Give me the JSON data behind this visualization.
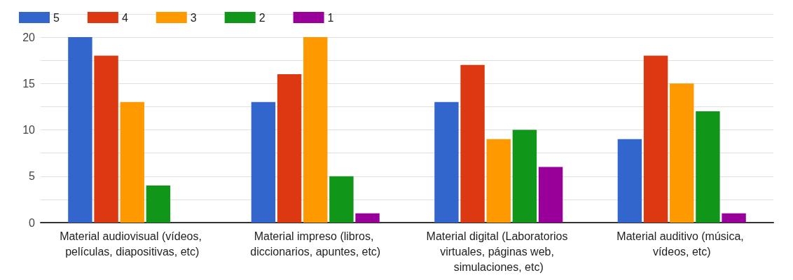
{
  "chart_data": {
    "type": "bar",
    "categories": [
      "Material audiovisual (vídeos, películas, diapositivas, etc)",
      "Material impreso (libros, diccionarios, apuntes, etc)",
      "Material digital (Laboratorios virtuales, páginas web, simulaciones, etc)",
      "Material auditivo (música, vídeos, etc)"
    ],
    "series": [
      {
        "name": "5",
        "color": "#3366cc",
        "values": [
          20,
          13,
          13,
          9
        ]
      },
      {
        "name": "4",
        "color": "#dc3912",
        "values": [
          18,
          16,
          17,
          18
        ]
      },
      {
        "name": "3",
        "color": "#ff9900",
        "values": [
          13,
          20,
          9,
          15
        ]
      },
      {
        "name": "2",
        "color": "#109618",
        "values": [
          4,
          5,
          10,
          12
        ]
      },
      {
        "name": "1",
        "color": "#990099",
        "values": [
          0,
          1,
          6,
          1
        ]
      }
    ],
    "ylim": [
      0,
      22.5
    ],
    "yticks": [
      0,
      {
        "value": 2.5,
        "label": null
      },
      5,
      {
        "value": 7.5,
        "label": null
      },
      10,
      {
        "value": 12.5,
        "label": null
      },
      15,
      {
        "value": 17.5,
        "label": null
      },
      20,
      {
        "value": 22.5,
        "label": null
      }
    ],
    "grid": "y",
    "legend": "top left"
  }
}
